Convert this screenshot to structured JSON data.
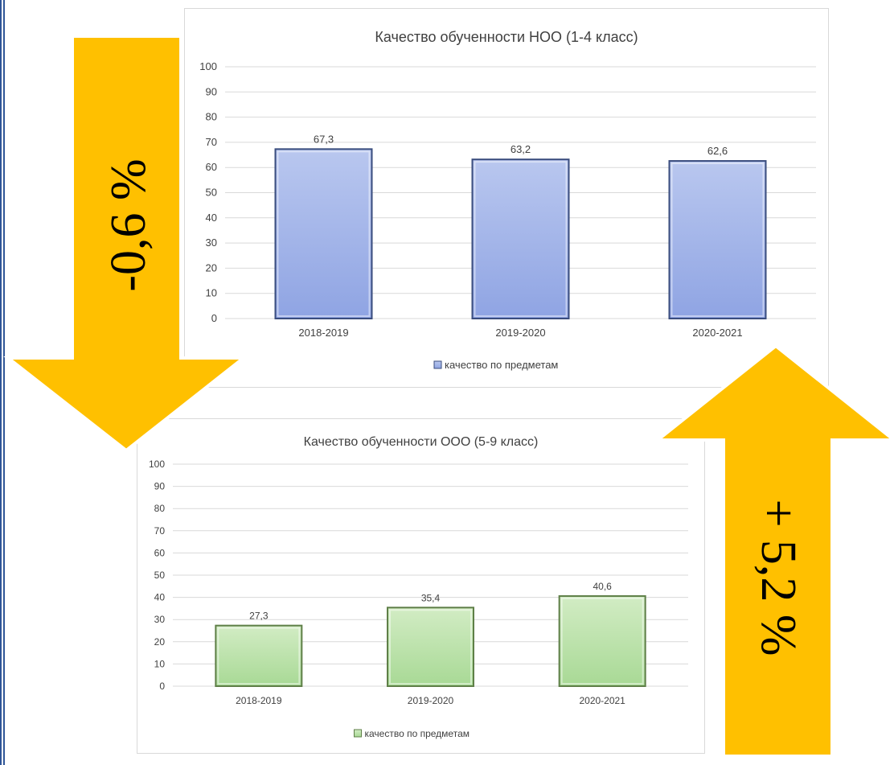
{
  "colors": {
    "arrow_fill": "#ffc000",
    "arrow_stroke": "#ffffff",
    "bar1_top": "#b9c7ef",
    "bar1_bottom": "#8fa4e3",
    "bar1_border": "#3a4d7e",
    "bar2_top": "#d2ecc4",
    "bar2_bottom": "#a8d995",
    "bar2_border": "#5f7f48",
    "grid": "#d9d9d9",
    "text": "#404040"
  },
  "arrows": {
    "down_label": "-0,6 %",
    "up_label": "+ 5,2 %"
  },
  "chart_data": [
    {
      "type": "bar",
      "title": "Качество  обученности  НОО (1-4 класс)",
      "categories": [
        "2018-2019",
        "2019-2020",
        "2020-2021"
      ],
      "series": [
        {
          "name": "качество по предметам",
          "values": [
            67.3,
            63.2,
            62.6
          ]
        }
      ],
      "data_labels": [
        "67,3",
        "63,2",
        "62,6"
      ],
      "xlabel": "",
      "ylabel": "",
      "ylim": [
        0,
        100
      ],
      "yticks": [
        0,
        10,
        20,
        30,
        40,
        50,
        60,
        70,
        80,
        90,
        100
      ],
      "grid": true,
      "legend": "bottom",
      "palette": "blue"
    },
    {
      "type": "bar",
      "title": "Качество  обученности  ООО (5-9 класс)",
      "categories": [
        "2018-2019",
        "2019-2020",
        "2020-2021"
      ],
      "series": [
        {
          "name": "качество по предметам",
          "values": [
            27.3,
            35.4,
            40.6
          ]
        }
      ],
      "data_labels": [
        "27,3",
        "35,4",
        "40,6"
      ],
      "xlabel": "",
      "ylabel": "",
      "ylim": [
        0,
        100
      ],
      "yticks": [
        0,
        10,
        20,
        30,
        40,
        50,
        60,
        70,
        80,
        90,
        100
      ],
      "grid": true,
      "legend": "bottom",
      "palette": "green"
    }
  ]
}
